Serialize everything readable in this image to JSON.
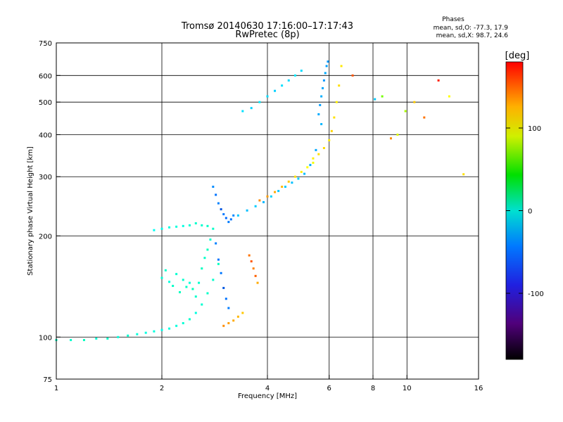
{
  "chart_data": {
    "type": "scatter",
    "title": "Tromsø 20140630 17:16:00–17:17:43",
    "subtitle": "RwPretec (8p)",
    "xlabel": "Frequency [MHz]",
    "ylabel": "Stationary phase Virtual Height [km]",
    "x_scale": "log",
    "y_scale": "log",
    "xlim": [
      1,
      16
    ],
    "ylim": [
      75,
      750
    ],
    "grid": true,
    "x_ticks": [
      1,
      2,
      4,
      6,
      8,
      10,
      16
    ],
    "x_tick_labels": [
      "1",
      "2",
      "4",
      "6",
      "8",
      "10",
      "16"
    ],
    "x_grid_at": [
      2,
      4,
      6,
      8,
      10
    ],
    "y_ticks": [
      75,
      100,
      200,
      300,
      400,
      500,
      600,
      750
    ],
    "y_tick_labels": [
      "75",
      "100",
      "200",
      "300",
      "400",
      "500",
      "600",
      "750"
    ],
    "y_grid_at": [
      100,
      200,
      300,
      400,
      500,
      600
    ],
    "info": {
      "heading": "Phases",
      "line1": "mean, sd,O: -77.3, 17.9",
      "line2": "mean, sd,X: 98.7, 24.6"
    },
    "colorbar": {
      "label": "[deg]",
      "min": -180,
      "max": 180,
      "ticks": [
        100,
        0,
        -100
      ],
      "tick_labels": [
        "100",
        "0",
        "-100"
      ]
    },
    "series": [
      {
        "segments": [
          {
            "f": [
              1.0,
              1.1,
              1.2,
              1.3,
              1.4,
              1.5,
              1.6,
              1.7,
              1.8,
              1.9,
              2.0,
              2.1,
              2.2,
              2.3,
              2.4,
              2.5,
              2.6,
              2.7,
              2.8,
              2.9
            ],
            "h": [
              98,
              98,
              98,
              99,
              99,
              100,
              101,
              102,
              103,
              104,
              105,
              106,
              108,
              110,
              113,
              118,
              125,
              135,
              148,
              165
            ],
            "p": [
              -70,
              -72,
              -68,
              -75,
              -70,
              -78,
              -74,
              -76,
              -80,
              -78,
              -82,
              -80,
              -78,
              -75,
              -72,
              -78,
              -74,
              -70,
              -72,
              -68
            ]
          },
          {
            "f": [
              1.9,
              2.0,
              2.1,
              2.2,
              2.3,
              2.4,
              2.5,
              2.6,
              2.7
            ],
            "h": [
              208,
              210,
              212,
              213,
              214,
              215,
              218,
              215,
              214
            ],
            "p": [
              -85,
              -82,
              -80,
              -78,
              -80,
              -75,
              -72,
              -74,
              -70
            ]
          },
          {
            "f": [
              2.0,
              2.05,
              2.1,
              2.15,
              2.2,
              2.25,
              2.3,
              2.35,
              2.4,
              2.45,
              2.5
            ],
            "h": [
              150,
              158,
              146,
              142,
              154,
              136,
              148,
              141,
              145,
              139,
              132
            ],
            "p": [
              -75,
              -72,
              -78,
              -70,
              -74,
              -68,
              -72,
              -70,
              -76,
              -66,
              -72
            ]
          },
          {
            "f": [
              2.55,
              2.6,
              2.65,
              2.7,
              2.75,
              2.8
            ],
            "h": [
              145,
              160,
              172,
              182,
              195,
              210
            ],
            "p": [
              -72,
              -68,
              -70,
              -66,
              -74,
              -70
            ]
          },
          {
            "f": [
              2.8,
              2.85,
              2.9,
              2.95,
              3.0,
              3.05,
              3.1,
              3.15,
              3.2
            ],
            "h": [
              280,
              265,
              250,
              240,
              232,
              226,
              220,
              224,
              230
            ],
            "p": [
              -130,
              -140,
              -135,
              -145,
              -138,
              -142,
              -136,
              -140,
              -132
            ]
          },
          {
            "f": [
              2.85,
              2.9,
              2.95,
              3.0,
              3.05,
              3.1
            ],
            "h": [
              190,
              170,
              155,
              140,
              130,
              122
            ],
            "p": [
              -135,
              -140,
              -138,
              -145,
              -140,
              -136
            ]
          },
          {
            "f": [
              3.3,
              3.5,
              3.7,
              3.9,
              4.1,
              4.3,
              4.5,
              4.7,
              4.9,
              5.1,
              5.3,
              5.5,
              5.7
            ],
            "h": [
              230,
              238,
              245,
              252,
              262,
              272,
              280,
              288,
              296,
              306,
              325,
              360,
              430
            ],
            "p": [
              -110,
              -112,
              -108,
              -115,
              -105,
              -110,
              -108,
              -112,
              -106,
              -114,
              -118,
              -120,
              -116
            ]
          },
          {
            "f": [
              5.6,
              5.65,
              5.7,
              5.75,
              5.8,
              5.85,
              5.9,
              5.95
            ],
            "h": [
              460,
              490,
              520,
              550,
              580,
              610,
              640,
              660
            ],
            "p": [
              -120,
              -125,
              -118,
              -122,
              -128,
              -120,
              -124,
              -126
            ]
          },
          {
            "f": [
              3.4,
              3.6,
              3.8,
              4.0,
              4.2,
              4.4,
              4.6,
              4.8,
              5.0
            ],
            "h": [
              470,
              480,
              500,
              520,
              540,
              560,
              580,
              600,
              620
            ],
            "p": [
              -100,
              -105,
              -98,
              -102,
              -106,
              -100,
              -104,
              -98,
              -102
            ]
          },
          {
            "f": [
              3.8,
              4.0,
              4.2,
              4.4,
              4.6,
              4.8,
              5.0,
              5.2,
              5.4
            ],
            "h": [
              255,
              262,
              270,
              280,
              290,
              300,
              310,
              320,
              330
            ],
            "p": [
              130,
              125,
              120,
              115,
              110,
              100,
              95,
              90,
              85
            ]
          },
          {
            "f": [
              5.4,
              5.6,
              5.8,
              6.0,
              6.1,
              6.2,
              6.3,
              6.4,
              6.5
            ],
            "h": [
              340,
              350,
              365,
              385,
              410,
              450,
              500,
              560,
              640
            ],
            "p": [
              95,
              100,
              102,
              98,
              105,
              100,
              96,
              102,
              98
            ]
          },
          {
            "f": [
              3.0,
              3.1,
              3.2,
              3.3,
              3.4
            ],
            "h": [
              108,
              110,
              112,
              115,
              118
            ],
            "p": [
              130,
              125,
              120,
              115,
              110
            ]
          },
          {
            "f": [
              3.55,
              3.6,
              3.65,
              3.7,
              3.75
            ],
            "h": [
              175,
              168,
              160,
              152,
              145
            ],
            "p": [
              140,
              150,
              135,
              145,
              120
            ]
          },
          {
            "f": [
              7.0,
              8.1,
              8.5,
              9.0,
              9.4,
              9.9,
              10.5,
              11.2,
              12.3,
              13.2,
              14.5
            ],
            "h": [
              600,
              510,
              520,
              390,
              400,
              470,
              500,
              450,
              580,
              520,
              305
            ],
            "p": [
              150,
              -110,
              40,
              130,
              80,
              60,
              110,
              140,
              170,
              90,
              100
            ]
          }
        ]
      }
    ]
  }
}
